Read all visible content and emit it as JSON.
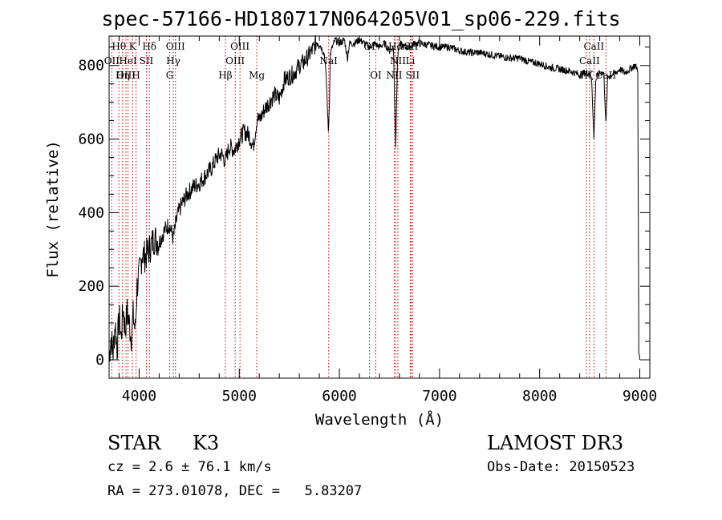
{
  "chart_data": {
    "type": "line",
    "title": "spec-57166-HD180717N064205V01_sp06-229.fits",
    "xlabel": "Wavelength (Å)",
    "ylabel": "Flux (relative)",
    "xlim": [
      3700,
      9100
    ],
    "ylim": [
      -50,
      880
    ],
    "x_ticks": [
      4000,
      5000,
      6000,
      7000,
      8000,
      9000
    ],
    "y_ticks": [
      0,
      200,
      400,
      600,
      800
    ],
    "spectrum": {
      "x": [
        3700,
        3720,
        3740,
        3760,
        3780,
        3800,
        3820,
        3840,
        3860,
        3880,
        3900,
        3920,
        3940,
        3960,
        3980,
        4000,
        4030,
        4060,
        4100,
        4150,
        4200,
        4250,
        4300,
        4340,
        4380,
        4420,
        4480,
        4540,
        4600,
        4660,
        4720,
        4780,
        4820,
        4861,
        4900,
        4950,
        5000,
        5050,
        5100,
        5140,
        5180,
        5200,
        5250,
        5300,
        5350,
        5400,
        5450,
        5500,
        5550,
        5600,
        5650,
        5700,
        5750,
        5780,
        5800,
        5850,
        5870,
        5890,
        5900,
        5910,
        5930,
        5960,
        6000,
        6050,
        6080,
        6100,
        6150,
        6200,
        6250,
        6300,
        6350,
        6400,
        6450,
        6500,
        6540,
        6562,
        6580,
        6600,
        6650,
        6700,
        6750,
        6800,
        6900,
        7000,
        7100,
        7200,
        7300,
        7400,
        7500,
        7600,
        7700,
        7800,
        7900,
        8000,
        8100,
        8200,
        8300,
        8400,
        8450,
        8498,
        8520,
        8542,
        8560,
        8600,
        8640,
        8662,
        8680,
        8720,
        8760,
        8800,
        8850,
        8900,
        8950,
        8980,
        8990,
        9000
      ],
      "y": [
        10,
        60,
        20,
        100,
        30,
        120,
        60,
        140,
        80,
        130,
        100,
        60,
        120,
        80,
        200,
        230,
        290,
        280,
        300,
        330,
        320,
        350,
        370,
        330,
        390,
        420,
        450,
        470,
        480,
        500,
        520,
        550,
        560,
        540,
        580,
        570,
        600,
        620,
        610,
        580,
        660,
        650,
        680,
        700,
        720,
        710,
        760,
        770,
        780,
        800,
        810,
        830,
        850,
        870,
        860,
        830,
        760,
        620,
        700,
        830,
        850,
        870,
        860,
        870,
        820,
        860,
        860,
        870,
        860,
        850,
        860,
        850,
        860,
        840,
        850,
        580,
        820,
        860,
        850,
        850,
        860,
        860,
        855,
        850,
        850,
        840,
        835,
        835,
        830,
        825,
        820,
        820,
        810,
        805,
        795,
        790,
        785,
        775,
        780,
        780,
        760,
        600,
        760,
        780,
        780,
        640,
        770,
        775,
        780,
        790,
        780,
        790,
        800,
        790,
        20,
        0
      ]
    },
    "lines": [
      {
        "label": "Hθ",
        "wavelength": 3798,
        "row": 0
      },
      {
        "label": "K",
        "wavelength": 3934,
        "row": 0
      },
      {
        "label": "Hδ",
        "wavelength": 4102,
        "row": 0
      },
      {
        "label": "OIII",
        "wavelength": 4363,
        "row": 0
      },
      {
        "label": "OIII",
        "wavelength": 5007,
        "row": 0
      },
      {
        "label": "OI",
        "wavelength": 6300,
        "row": 0
      },
      {
        "label": "Hα",
        "wavelength": 6563,
        "row": 0
      },
      {
        "label": "SII",
        "wavelength": 6717,
        "row": 0
      },
      {
        "label": "CaII",
        "wavelength": 8542,
        "row": 0
      },
      {
        "label": "OII",
        "wavelength": 3727,
        "row": 1
      },
      {
        "label": "HeI",
        "wavelength": 3889,
        "row": 1
      },
      {
        "label": "SII",
        "wavelength": 4072,
        "row": 1
      },
      {
        "label": "Hγ",
        "wavelength": 4341,
        "row": 1
      },
      {
        "label": "OIII",
        "wavelength": 4959,
        "row": 1
      },
      {
        "label": "NaI",
        "wavelength": 5893,
        "row": 1
      },
      {
        "label": "NII",
        "wavelength": 6584,
        "row": 1
      },
      {
        "label": "Li",
        "wavelength": 6708,
        "row": 1
      },
      {
        "label": "CaII",
        "wavelength": 8498,
        "row": 1
      },
      {
        "label": "OIII",
        "wavelength": 3869,
        "row": 2
      },
      {
        "label": "Hη",
        "wavelength": 3835,
        "row": 2
      },
      {
        "label": "H",
        "wavelength": 3969,
        "row": 2
      },
      {
        "label": "G",
        "wavelength": 4305,
        "row": 2
      },
      {
        "label": "Hβ",
        "wavelength": 4861,
        "row": 2
      },
      {
        "label": "Mg",
        "wavelength": 5175,
        "row": 2
      },
      {
        "label": "OI",
        "wavelength": 6364,
        "row": 2
      },
      {
        "label": "NII",
        "wavelength": 6548,
        "row": 2
      },
      {
        "label": "SII",
        "wavelength": 6731,
        "row": 2
      },
      {
        "label": "Hζ",
        "wavelength": 8467,
        "row": 2
      },
      {
        "label": "CaII",
        "wavelength": 8662,
        "row": 2
      }
    ]
  },
  "info": {
    "class": "STAR",
    "subclass": "K3",
    "survey": "LAMOST DR3",
    "cz": "cz = 2.6 ± 76.1 km/s",
    "obs_date": "Obs-Date: 20150523",
    "coords": "RA = 273.01078, DEC =   5.83207"
  },
  "colors": {
    "line_markers": "#cc0000",
    "spectrum": "#000000",
    "axes": "#000000"
  }
}
